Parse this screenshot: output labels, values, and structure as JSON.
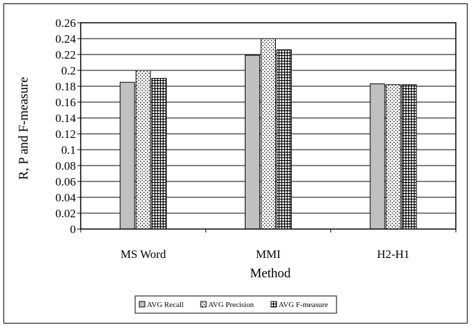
{
  "chart_data": {
    "type": "bar",
    "categories": [
      "MS Word",
      "MMI",
      "H2-H1"
    ],
    "series": [
      {
        "name": "AVG Recall",
        "values": [
          0.185,
          0.219,
          0.183
        ],
        "color": "#c0c0c0",
        "pattern": "solid"
      },
      {
        "name": "AVG Precision",
        "values": [
          0.2,
          0.24,
          0.182
        ],
        "color": "#ffffff",
        "pattern": "dots"
      },
      {
        "name": "AVG F-measure",
        "values": [
          0.19,
          0.226,
          0.182
        ],
        "color": "#ffffff",
        "pattern": "grid"
      }
    ],
    "title": "",
    "xlabel": "Method",
    "ylabel": "R, P and F-measure",
    "ylim": [
      0,
      0.26
    ],
    "yticks": [
      "0",
      "0.02",
      "0.04",
      "0.06",
      "0.08",
      "0.1",
      "0.12",
      "0.14",
      "0.16",
      "0.18",
      "0.2",
      "0.22",
      "0.24",
      "0.26"
    ],
    "grid": true,
    "legend_position": "bottom-center"
  }
}
